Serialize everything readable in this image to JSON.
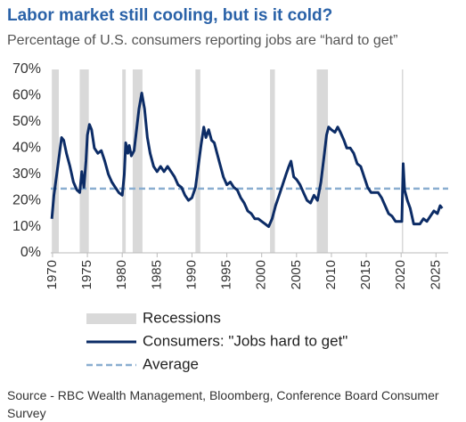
{
  "chart_data": {
    "type": "line",
    "title": "Labor market still cooling, but is it cold?",
    "subtitle": "Percentage of U.S. consumers reporting jobs are “hard to get”",
    "source": "Source - RBC Wealth Management, Bloomberg, Conference Board Consumer Survey",
    "xlim": [
      1969.75,
      2026.75
    ],
    "xticks": [
      1970,
      1975,
      1980,
      1985,
      1990,
      1995,
      2000,
      2005,
      2010,
      2015,
      2020,
      2025
    ],
    "ylim": [
      0,
      70
    ],
    "yticks": [
      {
        "value": 0,
        "label": "0%"
      },
      {
        "value": 10,
        "label": "10%"
      },
      {
        "value": 20,
        "label": "20%"
      },
      {
        "value": 30,
        "label": "30%"
      },
      {
        "value": 40,
        "label": "40%"
      },
      {
        "value": 50,
        "label": "50%"
      },
      {
        "value": 60,
        "label": "60%"
      },
      {
        "value": 70,
        "label": "70%"
      }
    ],
    "recessions": {
      "name": "Recessions",
      "color": "#d9d9d9",
      "start": [
        1969.9,
        1973.9,
        1980.0,
        1981.5,
        1990.5,
        2001.2,
        2007.9,
        2020.1
      ],
      "end": [
        1970.9,
        1975.2,
        1980.5,
        1982.9,
        1991.2,
        2001.9,
        2009.5,
        2020.3
      ]
    },
    "average": {
      "name": "Average",
      "value": 24.5,
      "color": "#8aaed0"
    },
    "x": [
      1969.9,
      1970.2,
      1970.6,
      1971.0,
      1971.3,
      1971.6,
      1972.0,
      1972.5,
      1973.0,
      1973.5,
      1973.9,
      1974.2,
      1974.5,
      1974.8,
      1975.0,
      1975.3,
      1975.6,
      1976.0,
      1976.5,
      1977.0,
      1977.5,
      1978.0,
      1978.5,
      1979.0,
      1979.5,
      1980.0,
      1980.3,
      1980.5,
      1980.8,
      1981.0,
      1981.3,
      1981.7,
      1982.0,
      1982.4,
      1982.8,
      1983.2,
      1983.6,
      1984.0,
      1984.5,
      1985.0,
      1985.5,
      1986.0,
      1986.5,
      1987.0,
      1987.5,
      1988.0,
      1988.5,
      1989.0,
      1989.5,
      1990.0,
      1990.5,
      1990.9,
      1991.3,
      1991.7,
      1992.0,
      1992.4,
      1992.8,
      1993.2,
      1993.6,
      1994.0,
      1994.5,
      1995.0,
      1995.5,
      1996.0,
      1996.5,
      1997.0,
      1997.5,
      1998.0,
      1998.5,
      1999.0,
      1999.5,
      2000.0,
      2000.5,
      2001.0,
      2001.5,
      2002.0,
      2002.5,
      2003.0,
      2003.5,
      2003.9,
      2004.2,
      2004.6,
      2005.0,
      2005.5,
      2006.0,
      2006.5,
      2007.0,
      2007.5,
      2008.0,
      2008.5,
      2009.0,
      2009.3,
      2009.6,
      2010.0,
      2010.5,
      2010.9,
      2011.3,
      2011.8,
      2012.2,
      2012.7,
      2013.2,
      2013.7,
      2014.2,
      2014.7,
      2015.2,
      2015.7,
      2016.2,
      2016.7,
      2017.2,
      2017.7,
      2018.2,
      2018.7,
      2019.2,
      2019.7,
      2020.1,
      2020.3,
      2020.5,
      2020.9,
      2021.3,
      2021.8,
      2022.2,
      2022.7,
      2023.2,
      2023.7,
      2024.2,
      2024.7,
      2025.2,
      2025.6,
      2025.9
    ],
    "series": [
      {
        "name": "Consumers: \"Jobs hard to get\"",
        "color": "#0c2c66",
        "values": [
          13,
          22,
          30,
          38,
          44,
          43,
          38,
          33,
          27,
          24,
          23,
          31,
          25,
          35,
          45,
          49,
          47,
          40,
          38,
          39,
          35,
          30,
          27,
          25,
          23,
          22,
          30,
          42,
          38,
          41,
          37,
          39,
          46,
          55,
          61,
          55,
          44,
          38,
          33,
          31,
          33,
          31,
          33,
          31,
          29,
          26,
          25,
          22,
          20,
          21,
          25,
          33,
          41,
          48,
          44,
          47,
          43,
          42,
          38,
          34,
          29,
          26,
          27,
          25,
          24,
          21,
          19,
          16,
          15,
          13,
          13,
          12,
          11,
          10,
          13,
          18,
          22,
          26,
          30,
          33,
          35,
          29,
          28,
          26,
          23,
          20,
          19,
          22,
          20,
          27,
          38,
          45,
          48,
          47,
          46,
          48,
          46,
          43,
          40,
          40,
          38,
          34,
          33,
          29,
          25,
          23,
          23,
          23,
          21,
          18,
          15,
          14,
          12,
          12,
          12,
          34,
          24,
          20,
          17,
          11,
          11,
          11,
          13,
          12,
          14,
          16,
          15,
          18,
          17
        ]
      }
    ]
  }
}
